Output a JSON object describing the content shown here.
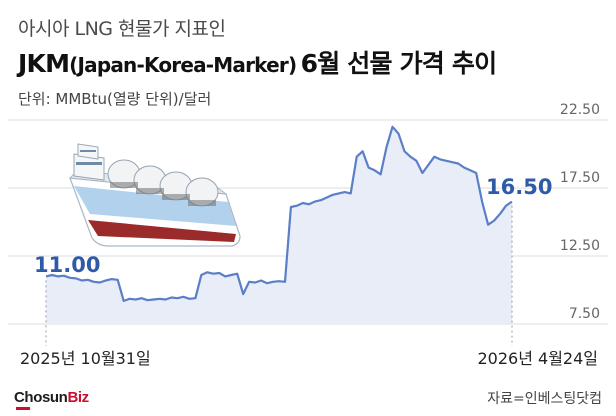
{
  "header": {
    "subtitle": "아시아 LNG 현물가 지표인",
    "title_main_1": "JKM",
    "title_paren": "(Japan-Korea-Marker)",
    "title_main_2": "6월 선물 가격 추이",
    "unit": "단위: MMBtu(열량 단위)/달러"
  },
  "footer": {
    "source": "자료=인베스팅닷컴",
    "logo_text_1": "Chosun",
    "logo_text_2": "Biz"
  },
  "colors": {
    "line": "#5b7fc7",
    "fill": "#e8edf8",
    "label": "#2f5aa8",
    "grid": "#dcdcdc",
    "axis_text": "#666666"
  },
  "icons": {
    "illustration": "lng-tanker-ship-icon"
  },
  "chart_data": {
    "type": "area",
    "title": "JKM(Japan-Korea-Marker) 6월 선물 가격 추이",
    "ylabel": "단위: MMBtu(열량 단위)/달러",
    "ylim": [
      7.5,
      22.5
    ],
    "yticks": [
      "22.50",
      "17.50",
      "12.50",
      "7.50"
    ],
    "ytick_values": [
      22.5,
      17.5,
      12.5,
      7.5
    ],
    "grid": true,
    "x_start_label": "2025년 10월31일",
    "x_end_label": "2026년 4월24일",
    "start_label": "11.00",
    "end_label": "16.50",
    "values": [
      11.0,
      11.1,
      11.0,
      11.05,
      10.9,
      10.85,
      10.7,
      10.75,
      10.6,
      10.55,
      10.7,
      10.8,
      10.75,
      9.2,
      9.35,
      9.3,
      9.4,
      9.25,
      9.3,
      9.35,
      9.3,
      9.45,
      9.4,
      9.5,
      9.35,
      9.4,
      11.1,
      11.3,
      11.2,
      11.25,
      11.0,
      11.1,
      11.2,
      9.7,
      10.6,
      10.55,
      10.7,
      10.5,
      10.6,
      10.65,
      10.6,
      16.1,
      16.2,
      16.4,
      16.3,
      16.5,
      16.6,
      16.8,
      17.0,
      17.1,
      17.2,
      17.1,
      19.8,
      20.2,
      19.0,
      18.8,
      18.5,
      20.5,
      22.0,
      21.5,
      20.2,
      19.8,
      19.5,
      18.6,
      19.2,
      19.8,
      19.6,
      19.5,
      19.4,
      19.3,
      19.0,
      18.8,
      18.6,
      16.5,
      14.8,
      15.1,
      15.6,
      16.2,
      16.5
    ]
  }
}
